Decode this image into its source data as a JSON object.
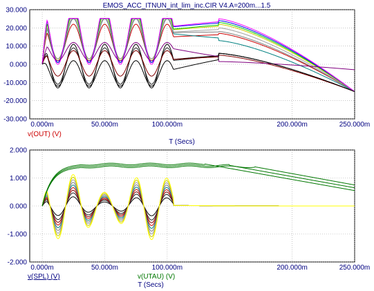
{
  "title": "EMOS_ACC_ITNUN_int_lim_inc.CIR V4.A=200m...1.5",
  "colors": {
    "background": "#ffffff",
    "axis": "#000000",
    "grid": "#a0a0a0",
    "top_legend": "#cc0000",
    "bottom_legend_spl": "#000080",
    "bottom_legend_utau": "#007700",
    "series": [
      "#000000",
      "#202020",
      "#800000",
      "#cc0000",
      "#008080",
      "#808080",
      "#a0a0a0",
      "#cccc00",
      "#ffff00",
      "#00cc00",
      "#0000ff",
      "#ff00ff",
      "#800080",
      "#ff8000"
    ]
  },
  "chart_data": [
    {
      "type": "line",
      "xlabel": "T  (Secs)",
      "xlim": [
        -0.01,
        0.25
      ],
      "ylim": [
        -30,
        30
      ],
      "x_ticks": [
        0,
        0.05,
        0.1,
        0.2,
        0.25
      ],
      "x_tick_labels": [
        "0.000m",
        "50.000m",
        "100.000m",
        "200.000m",
        "250.000m"
      ],
      "y_ticks": [
        30,
        20,
        10,
        0,
        -10,
        -20,
        -30
      ],
      "y_tick_labels": [
        "30.000",
        "20.000",
        "10.000",
        "0.000",
        "-10.000",
        "-20.000",
        "-30.000"
      ],
      "legend": [
        {
          "label": "v(OUT) (V)",
          "color": "#cc0000"
        }
      ],
      "series": [
        {
          "color": "#000000",
          "amp": 12.0,
          "dc": -1.0,
          "tail_peak": 6.0,
          "tail_end": -15.0,
          "clip": false
        },
        {
          "color": "#202020",
          "amp": 10.0,
          "dc": -1.0,
          "tail_peak": 6.0,
          "tail_end": -15.0,
          "clip": false
        },
        {
          "color": "#800000",
          "amp": 7.0,
          "dc": 0.5,
          "tail_peak": 5.0,
          "tail_end": -15.0,
          "clip": false
        },
        {
          "color": "#cc0000",
          "amp": 10.0,
          "dc": 12.0,
          "tail_peak": 17.0,
          "tail_end": -15.0,
          "clip": true
        },
        {
          "color": "#008080",
          "amp": 12.0,
          "dc": 13.0,
          "tail_peak": 13.0,
          "tail_end": -15.0,
          "clip": true
        },
        {
          "color": "#808080",
          "amp": 11.0,
          "dc": 14.0,
          "tail_peak": 18.0,
          "tail_end": -15.0,
          "clip": true
        },
        {
          "color": "#a0a0a0",
          "amp": 12.0,
          "dc": 14.0,
          "tail_peak": 20.0,
          "tail_end": -15.0,
          "clip": true
        },
        {
          "color": "#cccc00",
          "amp": 13.0,
          "dc": 15.0,
          "tail_peak": 22.0,
          "tail_end": -15.0,
          "clip": true
        },
        {
          "color": "#00cc00",
          "amp": 14.0,
          "dc": 15.0,
          "tail_peak": 23.0,
          "tail_end": -15.0,
          "clip": true
        },
        {
          "color": "#0000ff",
          "amp": 15.0,
          "dc": 16.0,
          "tail_peak": 24.0,
          "tail_end": -15.0,
          "clip": true
        },
        {
          "color": "#ff00ff",
          "amp": 16.0,
          "dc": 16.0,
          "tail_peak": 25.0,
          "tail_end": -15.0,
          "clip": true
        },
        {
          "color": "#800080",
          "amp": 5.0,
          "dc": 7.0,
          "tail_peak": 1.5,
          "tail_end": -3.0,
          "clip": false
        },
        {
          "color": "#000000",
          "amp": 7.0,
          "dc": -5.0,
          "tail_peak": 6.0,
          "tail_end": -15.0,
          "clip": false
        }
      ]
    },
    {
      "type": "line",
      "xlabel": "T  (Secs)",
      "xlim": [
        -0.01,
        0.25
      ],
      "ylim": [
        -2,
        2
      ],
      "x_ticks": [
        0,
        0.05,
        0.1,
        0.2,
        0.25
      ],
      "x_tick_labels": [
        "0.000m",
        "50.000m",
        "100.000m",
        "200.000m",
        "250.000m"
      ],
      "y_ticks": [
        2,
        1,
        0,
        -1,
        -2
      ],
      "y_tick_labels": [
        "2.000",
        "1.000",
        "0.000",
        "-1.000",
        "-2.000"
      ],
      "legend": [
        {
          "label": "v(SPL) (V)",
          "color": "#000080"
        },
        {
          "label": "v(UTAU) (V)",
          "color": "#007700"
        }
      ],
      "series": [
        {
          "name": "v(SPL)",
          "color": "#000080",
          "amps": [
            0.35,
            0.5,
            0.6,
            0.7,
            0.8,
            0.9,
            1.0,
            1.1,
            1.2
          ]
        },
        {
          "name": "v(UTAU)",
          "color": "#007700",
          "plateaus": [
            1.5,
            1.45,
            1.4
          ],
          "tail_end": [
            0.55,
            0.65,
            0.75
          ]
        }
      ]
    }
  ]
}
